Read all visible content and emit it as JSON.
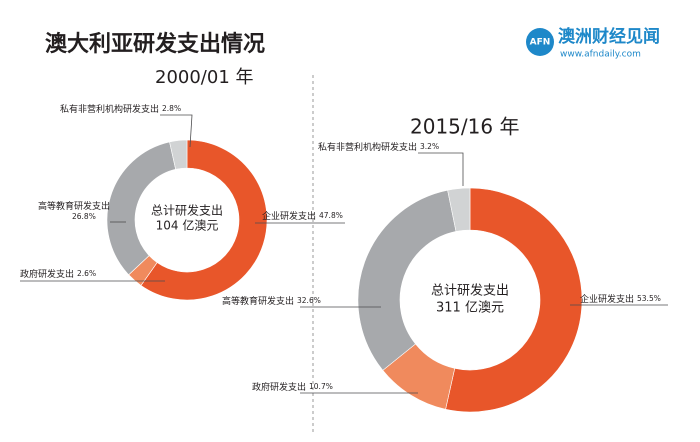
{
  "title": "澳大利亚研发支出情况",
  "logo": {
    "mark": "AFN",
    "name": "澳洲财经见闻",
    "url": "www.afndaily.com"
  },
  "chart_data": [
    {
      "type": "pie",
      "title": "2000/01 年",
      "center_text": [
        "总计研发支出",
        "104 亿澳元"
      ],
      "categories": [
        "企业研发支出",
        "政府研发支出",
        "高等教育研发支出",
        "私有非营利机构研发支出"
      ],
      "values": [
        47.8,
        2.6,
        26.8,
        2.8
      ],
      "value_labels": [
        "47.8%",
        "2.6%",
        "26.8%",
        "2.8%"
      ],
      "colors": [
        "#e8562a",
        "#f08a5d",
        "#a7a9ac",
        "#d1d3d4"
      ]
    },
    {
      "type": "pie",
      "title": "2015/16 年",
      "center_text": [
        "总计研发支出",
        "311 亿澳元"
      ],
      "categories": [
        "企业研发支出",
        "政府研发支出",
        "高等教育研发支出",
        "私有非营利机构研发支出"
      ],
      "values": [
        53.5,
        10.7,
        32.6,
        3.2
      ],
      "value_labels": [
        "53.5%",
        "10.7%",
        "32.6%",
        "3.2%"
      ],
      "colors": [
        "#e8562a",
        "#f08a5d",
        "#a7a9ac",
        "#d1d3d4"
      ]
    }
  ]
}
